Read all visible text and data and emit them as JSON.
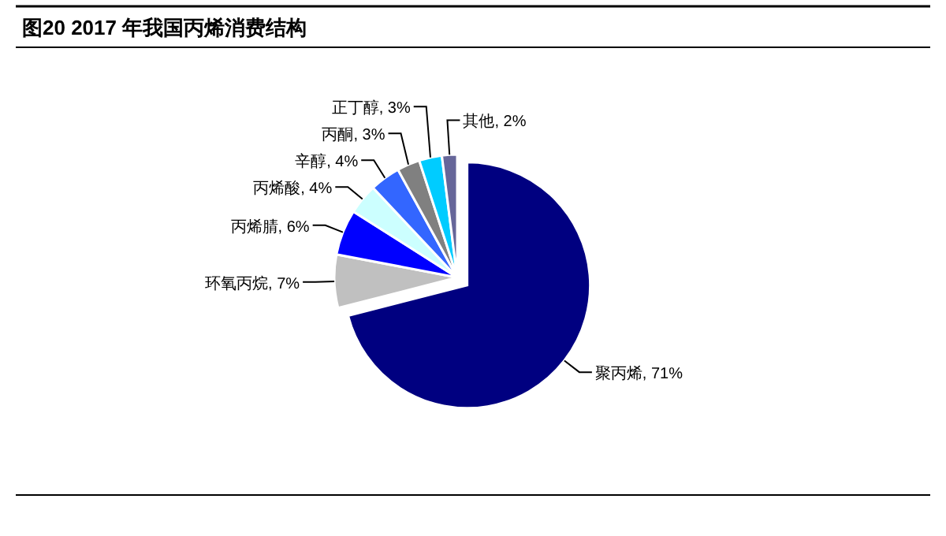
{
  "chart_data": {
    "type": "pie",
    "title": "图20 2017 年我国丙烯消费结构",
    "categories": [
      "聚丙烯",
      "环氧丙烷",
      "丙烯腈",
      "丙烯酸",
      "辛醇",
      "丙酮",
      "正丁醇",
      "其他"
    ],
    "values": [
      71,
      7,
      6,
      4,
      4,
      3,
      3,
      2
    ],
    "colors": [
      "#000080",
      "#c0c0c0",
      "#0000ff",
      "#ccffff",
      "#3366ff",
      "#808080",
      "#00ccff",
      "#666699"
    ],
    "value_labels": [
      "71%",
      "7%",
      "6%",
      "4%",
      "4%",
      "3%",
      "3%",
      "2%"
    ]
  }
}
